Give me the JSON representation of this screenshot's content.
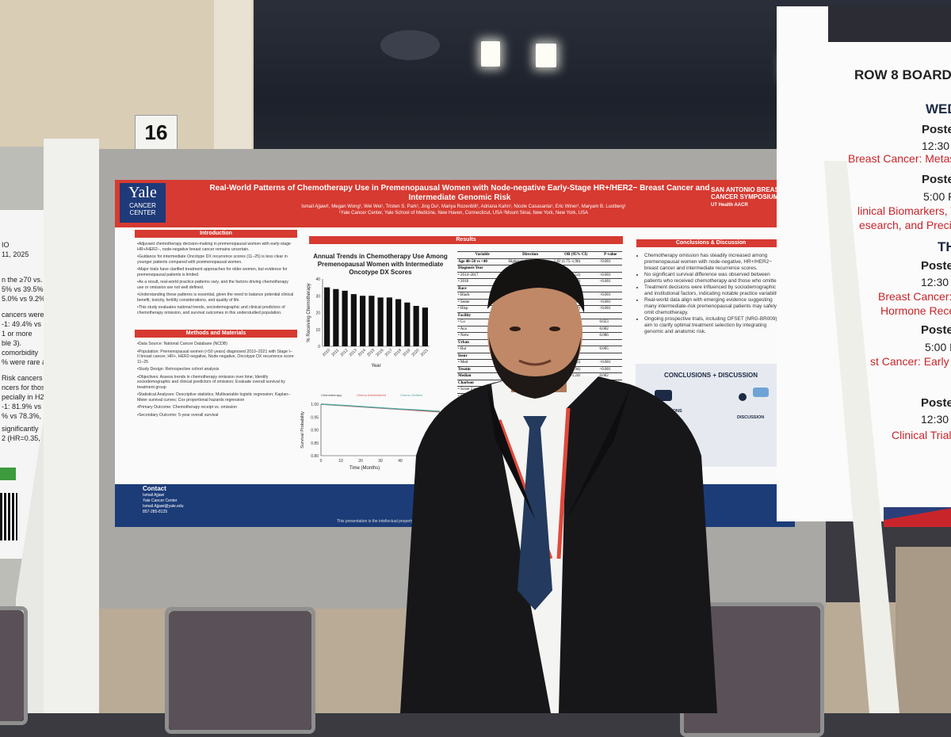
{
  "scene": {
    "booth_number": "16"
  },
  "poster": {
    "logo": {
      "name": "Yale",
      "sub": "CANCER CENTER"
    },
    "title": "Real-World Patterns of Chemotherapy Use in Premenopausal Women with Node-negative Early-Stage HR+/HER2− Breast Cancer and Intermediate Genomic Risk",
    "authors": "Ismail Ajjawi¹, Megan Wong¹, Wei Wei¹, Tristen S. Park¹, Jing Du¹, Mariya Rozenblit¹, Adriana Kahn¹, Nicole Casasanta¹, Eric Winer¹, Maryam B. Lustberg¹",
    "affiliations": "¹Yale Cancer Center, Yale School of Medicine, New Haven, Connecticut, USA   ²Mount Sinai, New York, New York, USA",
    "sponsor": "SAN ANTONIO BREAST CANCER SYMPOSIUM",
    "sponsor_sub": "UT Health   AACR",
    "sections": {
      "intro": "Introduction",
      "methods": "Methods and Materials",
      "results": "Results",
      "conclusions": "Conclusions & Discussion"
    },
    "intro_text": [
      "•Adjuvant chemotherapy decision-making in premenopausal women with early-stage HR+/HER2−, node-negative breast cancer remains uncertain.",
      "•Guidance for intermediate Oncotype DX recurrence scores (11–25) is less clear in younger patients compared with postmenopausal women.",
      "•Major trials have clarified treatment approaches for older women, but evidence for premenopausal patients is limited.",
      "•As a result, real-world practice patterns vary, and the factors driving chemotherapy use or omission are not well defined.",
      "•Understanding these patterns is essential, given the need to balance potential clinical benefit, toxicity, fertility considerations, and quality of life.",
      "•This study evaluates national trends, sociodemographic and clinical predictors of chemotherapy omission, and survival outcomes in this understudied population."
    ],
    "methods_text": [
      "•Data Source: National Cancer Database (NCDB)",
      "•Population: Premenopausal women (<50 years) diagnosed 2010–2021 with Stage I–II breast cancer, HR+, HER2-negative, Node-negative, Oncotype DX recurrence score 11–25",
      "•Study Design: Retrospective cohort analysis",
      "•Objectives: Assess trends in chemotherapy omission over time; Identify sociodemographic and clinical predictors of omission; Evaluate overall survival by treatment group",
      "•Statistical Analyses: Descriptive statistics; Multivariable logistic regression; Kaplan–Meier survival curves; Cox proportional hazards regression",
      "•Primary Outcome: Chemotherapy receipt vs. omission",
      "•Secondary Outcome: 5-year overall survival"
    ],
    "chart_title": "Annual Trends in Chemotherapy Use Among Premenopausal Women with Intermediate Oncotype DX Scores",
    "km_legend": [
      "Chemotherapy",
      "Chemo Administered",
      "Chemo Omitted"
    ],
    "table": {
      "headers": [
        "Variable",
        "Direction",
        "OR (95% CI)",
        "P-value"
      ],
      "rows": [
        [
          "Age 40–50 vs <40",
          "Higher omission",
          "1.82 (1.75–1.90)",
          "<0.001"
        ],
        [
          "Diagnosis Year",
          "",
          "",
          ""
        ],
        [
          "• 2014–2017",
          "omission",
          "1.45 (1.39–1.51)",
          "<0.001"
        ],
        [
          "• 2018",
          "omission",
          "1.58 (1.53–1.64)",
          "<0.001"
        ],
        [
          "Race",
          "",
          "",
          ""
        ],
        [
          "• Black",
          "",
          "0.85 (0.79–0.91)",
          "<0.001"
        ],
        [
          "• Some",
          "",
          "0.68 (0.56–0.83)",
          "<0.001"
        ],
        [
          "• Hisp",
          "",
          "0.83 (0.75–0.92)",
          "<0.001"
        ],
        [
          "Facility",
          "",
          "",
          ""
        ],
        [
          "• Co",
          "",
          "1.09 (1.01–1.18)",
          "0.023"
        ],
        [
          "• Aca",
          "",
          "1.13 (1.05–1.22)",
          "0.002"
        ],
        [
          "• Netw",
          "",
          "1.11 (1.03–1.20)",
          "0.006"
        ],
        [
          "Urban",
          "",
          "",
          ""
        ],
        [
          "• Rur",
          "",
          "0.88 (0.80–0.96)",
          "0.005"
        ],
        [
          "Insur",
          "",
          "",
          ""
        ],
        [
          "• Med",
          "",
          "1.81 (1.54–2.12)",
          "<0.001"
        ],
        [
          "Treatm",
          "",
          "0.90 (0.86–0.94)",
          "<0.001"
        ],
        [
          "Median",
          "",
          "1.14 (1.05–1.24)",
          "0.002"
        ],
        [
          "Charlson",
          "",
          "",
          ""
        ],
        [
          "• Score 2 vs 0",
          "",
          "1.23 (1.09–1.39)",
          "0.001"
        ],
        [
          "• Score ≥3 vs",
          "",
          "1.32 (1.06–1.64)",
          "0.012"
        ],
        [
          "Stage II vs I",
          "",
          "0.58 (0.56–0.61)",
          "<0.001"
        ],
        [
          "Oncotype 16–20",
          "",
          "0.76 (0.71–0.80)",
          "<0.001"
        ]
      ]
    },
    "conclusions": [
      "Chemotherapy omission has steadily increased among premenopausal women with node-negative, HR+/HER2− breast cancer and intermediate recurrence scores.",
      "No significant survival difference was observed between patients who received chemotherapy and those who omitted it.",
      "Treatment decisions were influenced by sociodemographic and institutional factors, indicating notable practice variability.",
      "Real-world data align with emerging evidence suggesting many intermediate-risk premenopausal patients may safely omit chemotherapy.",
      "Ongoing prospective trials, including OFSET (NRG-BR009), aim to clarify optimal treatment selection by integrating genomic and anatomic risk."
    ],
    "summary": {
      "title": "CONCLUSIONS + DISCUSSION",
      "left_label": "CONCLUSIONS",
      "right_label": "DISCUSSION"
    },
    "contact": {
      "heading": "Contact",
      "name": "Ismail Ajjawi",
      "org": "Yale Cancer Center",
      "email": "Ismail.Ajjawi@yale.edu",
      "phone": "857-285-8125"
    },
    "footnote": "This presentation is the intellectual property of the author/presenter."
  },
  "chart_data": [
    {
      "type": "bar",
      "title": "Annual Trends in Chemotherapy Use Among Premenopausal Women with Intermediate Oncotype DX Scores",
      "xlabel": "Year",
      "ylabel": "% Receiving Chemotherapy",
      "categories": [
        "2010",
        "2011",
        "2012",
        "2013",
        "2014",
        "2015",
        "2016",
        "2017",
        "2018",
        "2019",
        "2020",
        "2021"
      ],
      "values": [
        35,
        34,
        33,
        31,
        30,
        30,
        29,
        29,
        28,
        26,
        24,
        23
      ],
      "ylim": [
        0,
        40
      ],
      "yticks": [
        0,
        10,
        20,
        30,
        40
      ],
      "color": "#111111"
    },
    {
      "type": "line",
      "xlabel": "Time (Months)",
      "ylabel": "Survival Probability",
      "series": [
        {
          "name": "Chemo Administered",
          "color": "#d9534f",
          "x": [
            0,
            10,
            20,
            30,
            40,
            50,
            60
          ],
          "values": [
            1.0,
            0.995,
            0.99,
            0.985,
            0.98,
            0.975,
            0.97
          ]
        },
        {
          "name": "Chemo Omitted",
          "color": "#4aa6a0",
          "x": [
            0,
            10,
            20,
            30,
            40,
            50,
            60
          ],
          "values": [
            1.0,
            0.996,
            0.991,
            0.986,
            0.981,
            0.977,
            0.972
          ]
        }
      ],
      "xticks": [
        0,
        10,
        20,
        30,
        40
      ],
      "yticks": [
        0.8,
        0.85,
        0.9,
        0.95,
        1.0
      ],
      "ylim": [
        0.8,
        1.0
      ]
    }
  ],
  "banner": {
    "row": "ROW 8 BOARD",
    "day": "WED",
    "items": [
      {
        "label": "Poste",
        "time": "12:30 P",
        "topic": "Breast Cancer: Metast"
      },
      {
        "label": "Poste",
        "time": "5:00 P",
        "topic": "linical Biomarkers, T"
      },
      {
        "topic2": "esearch, and Precis"
      },
      {
        "label": "TH"
      },
      {
        "label": "Poste",
        "time": "12:30 P",
        "topic": "Breast Cancer:",
        "topic2": "Hormone Rece"
      },
      {
        "label": "Poste",
        "time": "5:00 P",
        "topic": "st Cancer: Early S"
      },
      {
        "label": "Poste",
        "time": "12:30",
        "topic": "Clinical Trial"
      }
    ]
  },
  "left_poster_text": [
    "IO",
    "11, 2025",
    "n the ≥70 vs.",
    "5% vs 39.5%,",
    "5.0% vs 9.2%,",
    "cancers were",
    "-1: 49.4% vs",
    "1 or more",
    "ble 3).",
    "comorbidity",
    "% were rare at",
    "Risk cancers",
    "ncers for those",
    "pecially in H2",
    "-1: 81.9% vs",
    "% vs 78.3%,",
    "significantly",
    "2 (HR=0.35,"
  ]
}
